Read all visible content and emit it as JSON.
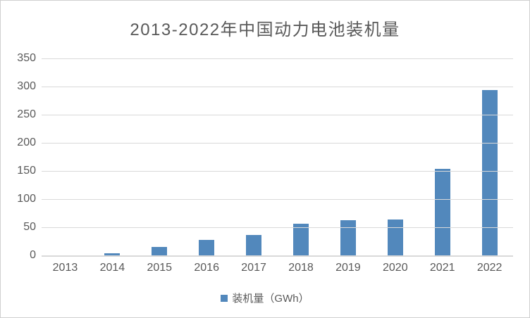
{
  "chart": {
    "title": "2013-2022年中国动力电池装机量",
    "legend": {
      "label": "装机量（GWh）"
    }
  },
  "chart_data": {
    "type": "bar",
    "title": "2013-2022年中国动力电池装机量",
    "categories": [
      "2013",
      "2014",
      "2015",
      "2016",
      "2017",
      "2018",
      "2019",
      "2020",
      "2021",
      "2022"
    ],
    "series": [
      {
        "name": "装机量（GWh）",
        "values": [
          0,
          4,
          15,
          27,
          36,
          56,
          62,
          64,
          154,
          294
        ]
      }
    ],
    "xlabel": "",
    "ylabel": "",
    "ylim": [
      0,
      350
    ],
    "yticks": [
      0,
      50,
      100,
      150,
      200,
      250,
      300,
      350
    ],
    "grid": true,
    "legend_position": "bottom"
  },
  "colors": {
    "bar": "#5288BC",
    "gridline": "#d9d9d9",
    "title_text": "#595959",
    "tick_text": "#595959",
    "border": "#d0d0d0",
    "background": "#ffffff"
  }
}
